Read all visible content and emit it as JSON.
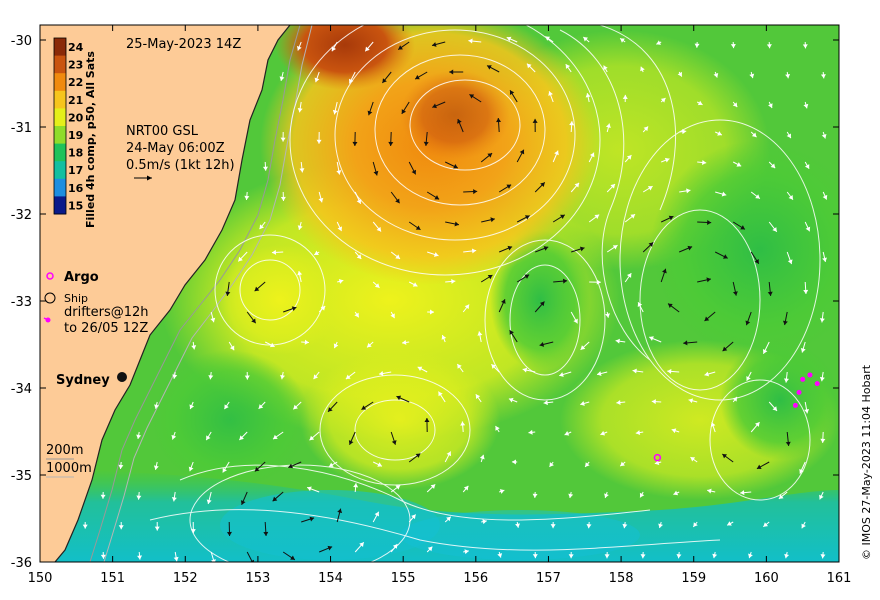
{
  "map": {
    "date_title": "25-May-2023 14Z",
    "colorbar": {
      "label": "Filled 4h comp, p50, All Sats",
      "ticks": [
        24,
        23,
        22,
        21,
        20,
        19,
        18,
        17,
        16,
        15
      ],
      "colors": [
        "#8a2a08",
        "#c9540f",
        "#f08a0e",
        "#f6c51c",
        "#e4ef1a",
        "#8fdc2a",
        "#1fc25a",
        "#12bfa0",
        "#1d8ee0",
        "#0a1a8a"
      ]
    },
    "model_info": {
      "line1": "NRT00 GSL",
      "line2": "24-May 06:00Z",
      "line3": "0.5m/s (1kt 12h)"
    },
    "legend": {
      "argo": "Argo",
      "ship": "Ship",
      "drifters": "drifters@12h",
      "drifters_to": "to 26/05 12Z"
    },
    "place": "Sydney",
    "depth": {
      "d200": "200m",
      "d1000": "1000m"
    },
    "credit": "© IMOS 27-May-2023 11:04 Hobart",
    "x_axis": {
      "ticks": [
        "150",
        "151",
        "152",
        "153",
        "154",
        "155",
        "156",
        "157",
        "158",
        "159",
        "160",
        "161"
      ]
    },
    "y_axis": {
      "ticks": [
        "-30",
        "-31",
        "-32",
        "-33",
        "-34",
        "-35",
        "-36"
      ]
    },
    "argo_floats": [
      {
        "lon": 158.5,
        "lat": -34.8
      }
    ],
    "drifter_points": [
      {
        "lon": 160.5,
        "lat": -33.9
      },
      {
        "lon": 160.6,
        "lat": -33.85
      },
      {
        "lon": 160.7,
        "lat": -33.95
      },
      {
        "lon": 160.45,
        "lat": -34.05
      },
      {
        "lon": 160.4,
        "lat": -34.2
      }
    ],
    "colors": {
      "land": "#fdcb97",
      "argo": "#ff00ff",
      "contour": "#ffffff"
    }
  }
}
